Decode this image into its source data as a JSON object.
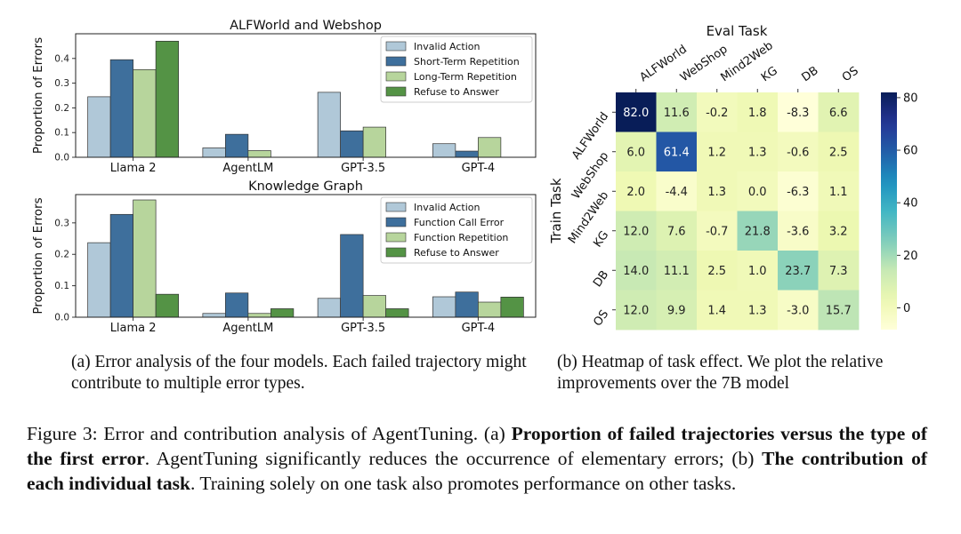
{
  "chart_data": [
    {
      "type": "bar",
      "title": "ALFWorld and Webshop",
      "ylabel": "Proportion of Errors",
      "categories": [
        "Llama 2",
        "AgentLM",
        "GPT-3.5",
        "GPT-4"
      ],
      "ylim": [
        0,
        0.5
      ],
      "yticks": [
        "0.0",
        "0.1",
        "0.2",
        "0.3",
        "0.4"
      ],
      "legend_position": "top-right",
      "series": [
        {
          "name": "Invalid Action",
          "color": "#b0c8d8",
          "values": [
            0.245,
            0.038,
            0.263,
            0.055
          ]
        },
        {
          "name": "Short-Term Repetition",
          "color": "#3e6f9c",
          "values": [
            0.395,
            0.093,
            0.107,
            0.025
          ]
        },
        {
          "name": "Long-Term Repetition",
          "color": "#b7d59c",
          "values": [
            0.355,
            0.027,
            0.122,
            0.08
          ]
        },
        {
          "name": "Refuse to Answer",
          "color": "#549345",
          "values": [
            0.47,
            0.0,
            0.0,
            0.0
          ]
        }
      ]
    },
    {
      "type": "bar",
      "title": "Knowledge Graph",
      "ylabel": "Proportion of Errors",
      "categories": [
        "Llama 2",
        "AgentLM",
        "GPT-3.5",
        "GPT-4"
      ],
      "ylim": [
        0,
        0.39
      ],
      "yticks": [
        "0.0",
        "0.1",
        "0.2",
        "0.3"
      ],
      "legend_position": "top-right",
      "series": [
        {
          "name": "Invalid Action",
          "color": "#b0c8d8",
          "values": [
            0.237,
            0.012,
            0.06,
            0.065
          ]
        },
        {
          "name": "Function Call Error",
          "color": "#3e6f9c",
          "values": [
            0.327,
            0.077,
            0.263,
            0.08
          ]
        },
        {
          "name": "Function Repetition",
          "color": "#b7d59c",
          "values": [
            0.373,
            0.012,
            0.069,
            0.048
          ]
        },
        {
          "name": "Refuse to Answer",
          "color": "#549345",
          "values": [
            0.073,
            0.027,
            0.027,
            0.064
          ]
        }
      ]
    },
    {
      "type": "heatmap",
      "xlabel": "Eval Task",
      "ylabel": "Train Task",
      "x_labels": [
        "ALFWorld",
        "WebShop",
        "Mind2Web",
        "KG",
        "DB",
        "OS"
      ],
      "y_labels": [
        "ALFWorld",
        "WebShop",
        "Mind2Web",
        "KG",
        "DB",
        "OS"
      ],
      "values": [
        [
          82.0,
          11.6,
          -0.2,
          1.8,
          -8.3,
          6.6
        ],
        [
          6.0,
          61.4,
          1.2,
          1.3,
          -0.6,
          2.5
        ],
        [
          2.0,
          -4.4,
          1.3,
          0.0,
          -6.3,
          1.1
        ],
        [
          12.0,
          7.6,
          -0.7,
          21.8,
          -3.6,
          3.2
        ],
        [
          14.0,
          11.1,
          2.5,
          1.0,
          23.7,
          7.3
        ],
        [
          12.0,
          9.9,
          1.4,
          1.3,
          -3.0,
          15.7
        ]
      ],
      "colorbar_range": [
        -8.3,
        82.0
      ],
      "colorbar_ticks": [
        0,
        20,
        40,
        60,
        80
      ],
      "colormap": "YlGnBu"
    }
  ],
  "captions": {
    "a": "(a) Error analysis of the four models. Each failed trajectory might contribute to multiple error types.",
    "b": "(b) Heatmap of task effect. We plot the relative improvements over the 7B model"
  },
  "figure_caption": {
    "prefix": "Figure 3: Error and contribution analysis of AgentTuning. (a) ",
    "bold1": "Proportion of failed trajectories versus the type of the first error",
    "mid": ". AgentTuning significantly reduces the occurrence of elementary errors; (b) ",
    "bold2": "The contribution of each individual task",
    "suffix": ". Training solely on one task also promotes performance on other tasks."
  }
}
